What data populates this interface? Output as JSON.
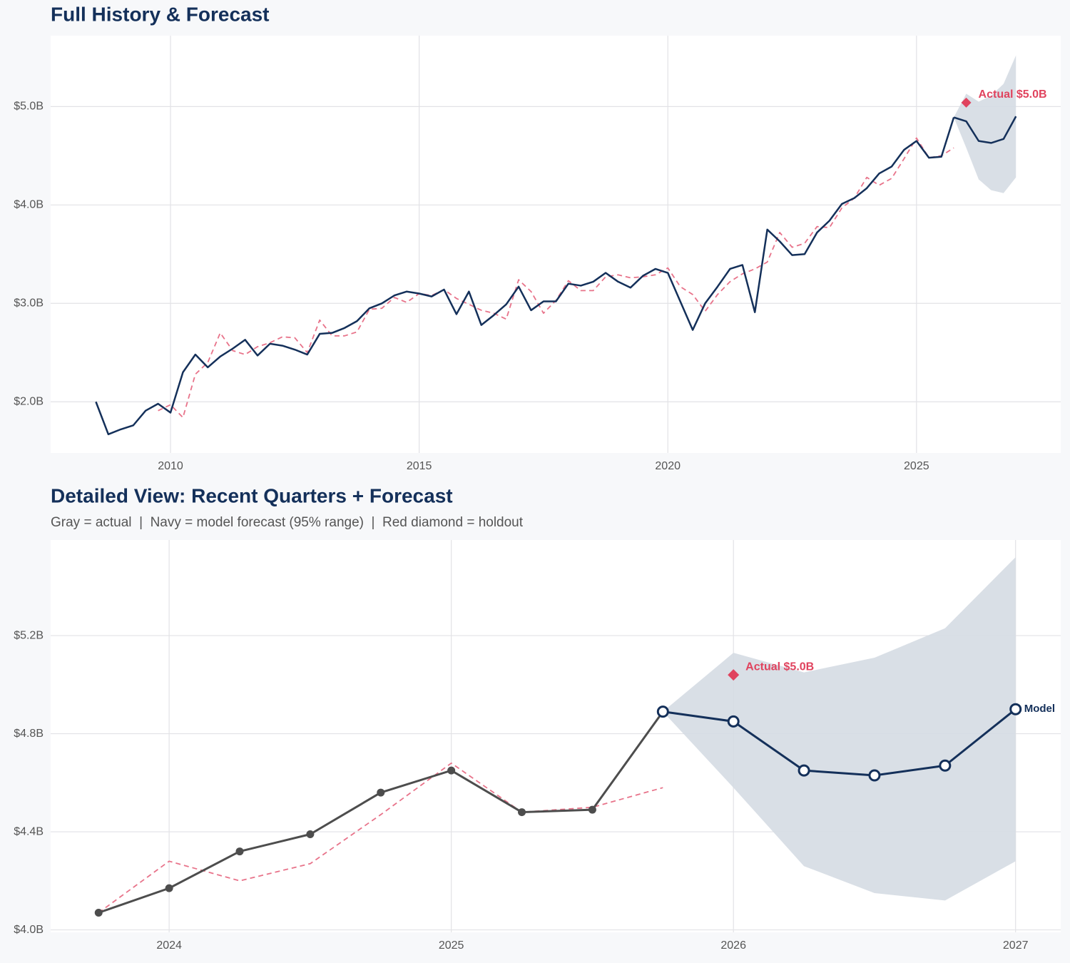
{
  "chart_data": [
    {
      "type": "line",
      "title": "Full History & Forecast",
      "x": [
        2008.5,
        2008.75,
        2009,
        2009.25,
        2009.5,
        2009.75,
        2010,
        2010.25,
        2010.5,
        2010.75,
        2011,
        2011.25,
        2011.5,
        2011.75,
        2012,
        2012.25,
        2012.5,
        2012.75,
        2013,
        2013.25,
        2013.5,
        2013.75,
        2014,
        2014.25,
        2014.5,
        2014.75,
        2015,
        2015.25,
        2015.5,
        2015.75,
        2016,
        2016.25,
        2016.5,
        2016.75,
        2017,
        2017.25,
        2017.5,
        2017.75,
        2018,
        2018.25,
        2018.5,
        2018.75,
        2019,
        2019.25,
        2019.5,
        2019.75,
        2020,
        2020.25,
        2020.5,
        2020.75,
        2021,
        2021.25,
        2021.5,
        2021.75,
        2022,
        2022.25,
        2022.5,
        2022.75,
        2023,
        2023.25,
        2023.5,
        2023.75,
        2024,
        2024.25,
        2024.5,
        2024.75,
        2025,
        2025.25,
        2025.5,
        2025.75,
        2026,
        2026.25,
        2026.5,
        2026.75,
        2027
      ],
      "xlim": [
        2007.59,
        2027.9
      ],
      "xticks": [
        2010,
        2015,
        2020,
        2025
      ],
      "ylim": [
        1.48,
        5.72
      ],
      "yticks": [
        {
          "value": 2,
          "label": "$2.0B"
        },
        {
          "value": 3,
          "label": "$3.0B"
        },
        {
          "value": 4,
          "label": "$4.0B"
        },
        {
          "value": 5,
          "label": "$5.0B"
        }
      ],
      "grid": true,
      "band": {
        "color": "#d5dbe3",
        "upper": [
          null,
          null,
          null,
          null,
          null,
          null,
          null,
          null,
          null,
          null,
          null,
          null,
          null,
          null,
          null,
          null,
          null,
          null,
          null,
          null,
          null,
          null,
          null,
          null,
          null,
          null,
          null,
          null,
          null,
          null,
          null,
          null,
          null,
          null,
          null,
          null,
          null,
          null,
          null,
          null,
          null,
          null,
          null,
          null,
          null,
          null,
          null,
          null,
          null,
          null,
          null,
          null,
          null,
          null,
          null,
          null,
          null,
          null,
          null,
          null,
          null,
          null,
          null,
          null,
          null,
          null,
          null,
          null,
          null,
          4.89,
          5.13,
          5.05,
          5.11,
          5.23,
          5.52
        ],
        "lower": [
          null,
          null,
          null,
          null,
          null,
          null,
          null,
          null,
          null,
          null,
          null,
          null,
          null,
          null,
          null,
          null,
          null,
          null,
          null,
          null,
          null,
          null,
          null,
          null,
          null,
          null,
          null,
          null,
          null,
          null,
          null,
          null,
          null,
          null,
          null,
          null,
          null,
          null,
          null,
          null,
          null,
          null,
          null,
          null,
          null,
          null,
          null,
          null,
          null,
          null,
          null,
          null,
          null,
          null,
          null,
          null,
          null,
          null,
          null,
          null,
          null,
          null,
          null,
          null,
          null,
          null,
          null,
          null,
          null,
          4.89,
          4.58,
          4.26,
          4.15,
          4.12,
          4.28
        ]
      },
      "series": [
        {
          "color": "#e8738a",
          "dash": true,
          "values": [
            null,
            null,
            null,
            null,
            null,
            1.91,
            1.97,
            1.84,
            2.28,
            2.4,
            2.7,
            2.52,
            2.48,
            2.56,
            2.6,
            2.66,
            2.65,
            2.5,
            2.83,
            2.67,
            2.67,
            2.71,
            2.94,
            2.95,
            3.06,
            3.01,
            3.1,
            3.08,
            3.14,
            3.05,
            2.99,
            2.93,
            2.9,
            2.84,
            3.24,
            3.12,
            2.9,
            3.03,
            3.23,
            3.13,
            3.13,
            3.27,
            3.29,
            3.26,
            3.27,
            3.29,
            3.36,
            3.17,
            3.09,
            2.92,
            3.09,
            3.22,
            3.3,
            3.35,
            3.42,
            3.72,
            3.57,
            3.61,
            3.78,
            3.77,
            3.97,
            4.07,
            4.28,
            4.2,
            4.27,
            4.47,
            4.68,
            4.48,
            4.5,
            4.58,
            null,
            null,
            null,
            null,
            null
          ]
        },
        {
          "color": "#14305a",
          "values": [
            2.0,
            1.67,
            1.72,
            1.76,
            1.91,
            1.98,
            1.89,
            2.3,
            2.48,
            2.35,
            2.46,
            2.54,
            2.63,
            2.47,
            2.59,
            2.57,
            2.53,
            2.48,
            2.69,
            2.7,
            2.75,
            2.82,
            2.95,
            3.0,
            3.08,
            3.12,
            3.1,
            3.07,
            3.14,
            2.89,
            3.12,
            2.78,
            2.88,
            2.99,
            3.17,
            2.93,
            3.02,
            3.02,
            3.2,
            3.18,
            3.22,
            3.31,
            3.22,
            3.16,
            3.28,
            3.35,
            3.31,
            3.02,
            2.73,
            3.0,
            3.17,
            3.35,
            3.39,
            2.91,
            3.75,
            3.63,
            3.49,
            3.5,
            3.72,
            3.84,
            4.01,
            4.07,
            4.17,
            4.32,
            4.39,
            4.56,
            4.65,
            4.48,
            4.49,
            4.89,
            null,
            null,
            null,
            null,
            null
          ]
        },
        {
          "color": "#14305a",
          "values": [
            null,
            null,
            null,
            null,
            null,
            null,
            null,
            null,
            null,
            null,
            null,
            null,
            null,
            null,
            null,
            null,
            null,
            null,
            null,
            null,
            null,
            null,
            null,
            null,
            null,
            null,
            null,
            null,
            null,
            null,
            null,
            null,
            null,
            null,
            null,
            null,
            null,
            null,
            null,
            null,
            null,
            null,
            null,
            null,
            null,
            null,
            null,
            null,
            null,
            null,
            null,
            null,
            null,
            null,
            null,
            null,
            null,
            null,
            null,
            null,
            null,
            null,
            null,
            null,
            null,
            null,
            null,
            null,
            null,
            4.89,
            4.85,
            4.65,
            4.63,
            4.67,
            4.9
          ]
        }
      ],
      "holdout": {
        "label": "Actual $5.0B",
        "x": 2026,
        "value": 5.04,
        "color": "#e0435e"
      }
    },
    {
      "type": "line",
      "title": "Detailed View: Recent Quarters + Forecast",
      "subtitle": "Gray = actual  |  Navy = model forecast (95% range)  |  Red diamond = holdout",
      "x": [
        2023.75,
        2024,
        2024.25,
        2024.5,
        2024.75,
        2025,
        2025.25,
        2025.5,
        2025.75,
        2026,
        2026.25,
        2026.5,
        2026.75,
        2027
      ],
      "xlim": [
        2023.58,
        2027.16
      ],
      "xticks": [
        2024,
        2025,
        2026,
        2027
      ],
      "ylim": [
        3.99,
        5.59
      ],
      "yticks": [
        {
          "value": 4.0,
          "label": "$4.0B"
        },
        {
          "value": 4.4,
          "label": "$4.4B"
        },
        {
          "value": 4.8,
          "label": "$4.8B"
        },
        {
          "value": 5.2,
          "label": "$5.2B"
        }
      ],
      "grid": true,
      "band": {
        "color": "#d5dbe3",
        "upper": [
          null,
          null,
          null,
          null,
          null,
          null,
          null,
          null,
          4.89,
          5.13,
          5.05,
          5.11,
          5.23,
          5.52
        ],
        "lower": [
          null,
          null,
          null,
          null,
          null,
          null,
          null,
          null,
          4.89,
          4.58,
          4.26,
          4.15,
          4.12,
          4.28
        ]
      },
      "series": [
        {
          "color": "#e8738a",
          "dash": true,
          "values": [
            4.07,
            4.28,
            4.2,
            4.27,
            4.47,
            4.68,
            4.48,
            4.5,
            4.58,
            null,
            null,
            null,
            null,
            null
          ]
        },
        {
          "color": "#4d4d4d",
          "marker": "filled",
          "values": [
            4.07,
            4.17,
            4.32,
            4.39,
            4.56,
            4.65,
            4.48,
            4.49,
            4.89,
            null,
            null,
            null,
            null,
            null
          ]
        },
        {
          "color": "#14305a",
          "marker": "hollow",
          "end_label": "Model",
          "values": [
            null,
            null,
            null,
            null,
            null,
            null,
            null,
            null,
            4.89,
            4.85,
            4.65,
            4.63,
            4.67,
            4.9
          ]
        }
      ],
      "holdout": {
        "label": "Actual $5.0B",
        "x": 2026,
        "value": 5.04,
        "color": "#e0435e"
      }
    }
  ]
}
